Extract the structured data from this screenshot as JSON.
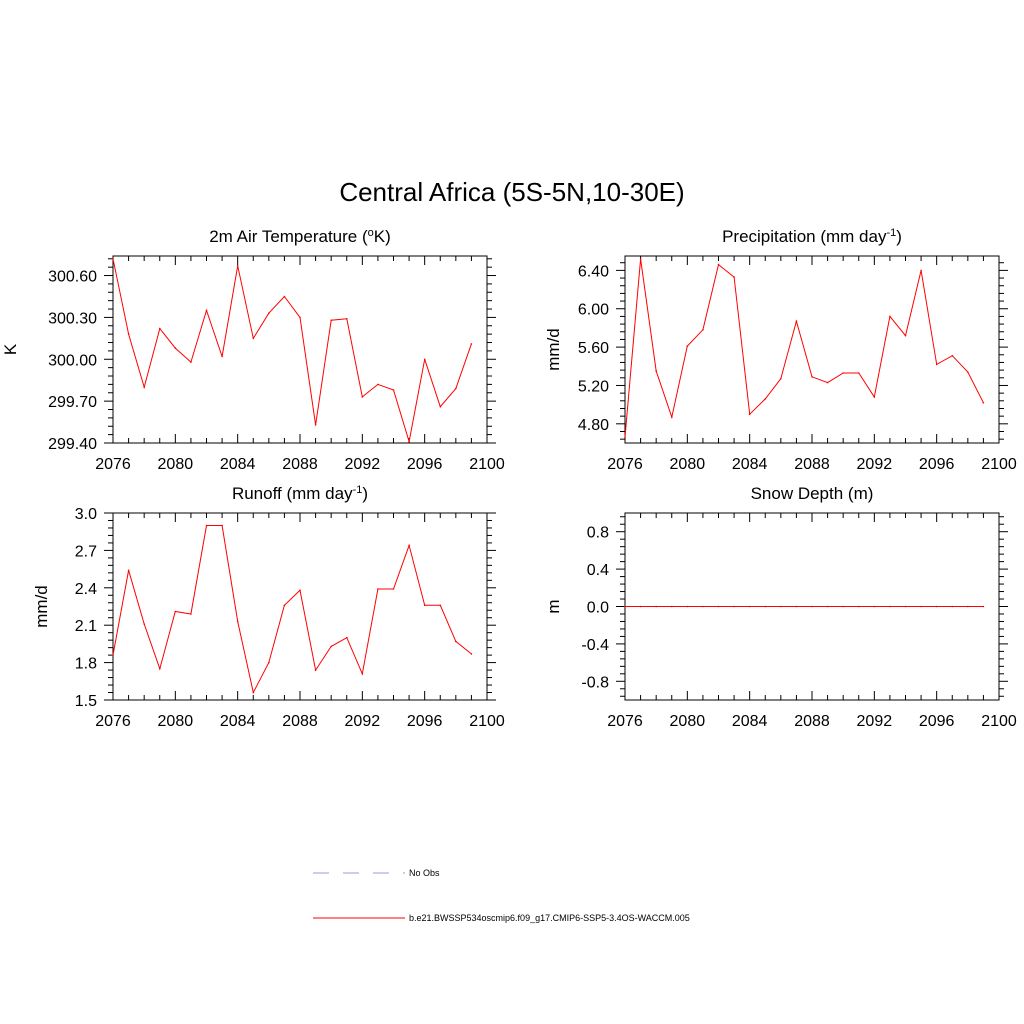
{
  "title": "Central Africa (5S-5N,10-30E)",
  "colors": {
    "model": "#ff0000",
    "obs": "#9999dd",
    "axis": "#000000"
  },
  "chart_data": [
    {
      "type": "line",
      "title_main": "2m Air Temperature (",
      "title_sup": "o",
      "title_tail": "K)",
      "ylabel": "K",
      "xlim": [
        2076,
        2100
      ],
      "ylim": [
        299.4,
        300.74
      ],
      "xticks": [
        2076,
        2080,
        2084,
        2088,
        2092,
        2096,
        2100
      ],
      "yticks": [
        299.4,
        299.7,
        300.0,
        300.3,
        300.6
      ],
      "ytick_labels": [
        "299.40",
        "299.70",
        "300.00",
        "300.30",
        "300.60"
      ],
      "x": [
        2076,
        2077,
        2078,
        2079,
        2080,
        2081,
        2082,
        2083,
        2084,
        2085,
        2086,
        2087,
        2088,
        2089,
        2090,
        2091,
        2092,
        2093,
        2094,
        2095,
        2096,
        2097,
        2098,
        2099
      ],
      "series": [
        {
          "name": "b.e21.BWSSP534oscmip6.f09_g17.CMIP6-SSP5-3.4OS-WACCM.005",
          "values": [
            300.72,
            300.18,
            299.8,
            300.22,
            300.08,
            299.98,
            300.35,
            300.02,
            300.67,
            300.15,
            300.33,
            300.45,
            300.3,
            299.53,
            300.28,
            300.29,
            299.73,
            299.82,
            299.78,
            299.41,
            300.0,
            299.66,
            299.79,
            300.11
          ]
        }
      ]
    },
    {
      "type": "line",
      "title_main": "Precipitation (mm day",
      "title_sup": "-1",
      "title_tail": ")",
      "ylabel": "mm/d",
      "xlim": [
        2076,
        2100
      ],
      "ylim": [
        4.6,
        6.55
      ],
      "xticks": [
        2076,
        2080,
        2084,
        2088,
        2092,
        2096,
        2100
      ],
      "yticks": [
        4.8,
        5.2,
        5.6,
        6.0,
        6.4
      ],
      "ytick_labels": [
        "4.80",
        "5.20",
        "5.60",
        "6.00",
        "6.40"
      ],
      "x": [
        2076,
        2077,
        2078,
        2079,
        2080,
        2081,
        2082,
        2083,
        2084,
        2085,
        2086,
        2087,
        2088,
        2089,
        2090,
        2091,
        2092,
        2093,
        2094,
        2095,
        2096,
        2097,
        2098,
        2099
      ],
      "series": [
        {
          "name": "b.e21.BWSSP534oscmip6.f09_g17.CMIP6-SSP5-3.4OS-WACCM.005",
          "values": [
            4.66,
            6.52,
            5.35,
            4.87,
            5.61,
            5.78,
            6.46,
            6.33,
            4.9,
            5.06,
            5.27,
            5.87,
            5.29,
            5.23,
            5.33,
            5.33,
            5.08,
            5.92,
            5.72,
            6.4,
            5.42,
            5.51,
            5.34,
            5.02
          ]
        }
      ]
    },
    {
      "type": "line",
      "title_main": "Runoff (mm day",
      "title_sup": "-1",
      "title_tail": ")",
      "ylabel": "mm/d",
      "xlim": [
        2076,
        2100
      ],
      "ylim": [
        1.5,
        3.0
      ],
      "xticks": [
        2076,
        2080,
        2084,
        2088,
        2092,
        2096,
        2100
      ],
      "yticks": [
        1.5,
        1.8,
        2.1,
        2.4,
        2.7,
        3.0
      ],
      "ytick_labels": [
        "1.5",
        "1.8",
        "2.1",
        "2.4",
        "2.7",
        "3.0"
      ],
      "x": [
        2076,
        2077,
        2078,
        2079,
        2080,
        2081,
        2082,
        2083,
        2084,
        2085,
        2086,
        2087,
        2088,
        2089,
        2090,
        2091,
        2092,
        2093,
        2094,
        2095,
        2096,
        2097,
        2098,
        2099
      ],
      "series": [
        {
          "name": "b.e21.BWSSP534oscmip6.f09_g17.CMIP6-SSP5-3.4OS-WACCM.005",
          "values": [
            1.86,
            2.54,
            2.11,
            1.75,
            2.21,
            2.19,
            2.9,
            2.9,
            2.13,
            1.56,
            1.8,
            2.26,
            2.38,
            1.74,
            1.93,
            2.0,
            1.71,
            2.39,
            2.39,
            2.74,
            2.26,
            2.26,
            1.97,
            1.87
          ]
        }
      ]
    },
    {
      "type": "line",
      "title_main": "Snow Depth (m)",
      "title_sup": "",
      "title_tail": "",
      "ylabel": "m",
      "xlim": [
        2076,
        2100
      ],
      "ylim": [
        -1.0,
        1.0
      ],
      "xticks": [
        2076,
        2080,
        2084,
        2088,
        2092,
        2096,
        2100
      ],
      "yticks": [
        -0.8,
        -0.4,
        0.0,
        0.4,
        0.8
      ],
      "ytick_labels": [
        "-0.8",
        "-0.4",
        "0.0",
        "0.4",
        "0.8"
      ],
      "x": [
        2076,
        2077,
        2078,
        2079,
        2080,
        2081,
        2082,
        2083,
        2084,
        2085,
        2086,
        2087,
        2088,
        2089,
        2090,
        2091,
        2092,
        2093,
        2094,
        2095,
        2096,
        2097,
        2098,
        2099
      ],
      "series": [
        {
          "name": "b.e21.BWSSP534oscmip6.f09_g17.CMIP6-SSP5-3.4OS-WACCM.005",
          "values": [
            0,
            0,
            0,
            0,
            0,
            0,
            0,
            0,
            0,
            0,
            0,
            0,
            0,
            0,
            0,
            0,
            0,
            0,
            0,
            0,
            0,
            0,
            0,
            0
          ]
        }
      ]
    }
  ],
  "legend": {
    "obs_label": "No Obs",
    "model_label": "b.e21.BWSSP534oscmip6.f09_g17.CMIP6-SSP5-3.4OS-WACCM.005"
  }
}
